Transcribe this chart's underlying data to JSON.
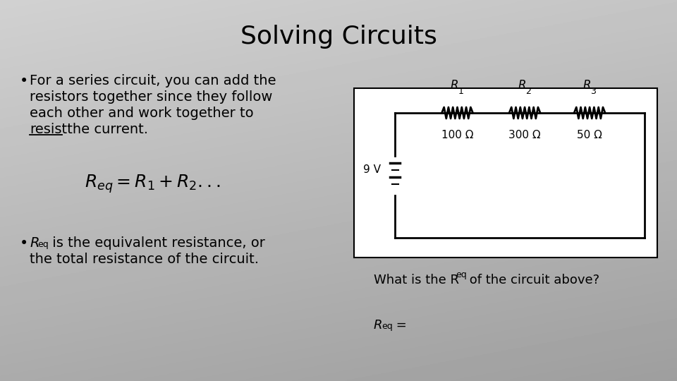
{
  "title": "Solving Circuits",
  "title_fontsize": 26,
  "bullet1_text": [
    "For a series circuit, you can add the",
    "resistors together since they follow",
    "each other and work together to",
    "resist the current."
  ],
  "formula": "$R_{eq} = R_1 + R_2 ...$",
  "bullet2_line1a": "R",
  "bullet2_line1b": "eq",
  "bullet2_line1c": " is the equivalent resistance, or",
  "bullet2_line2": "the total resistance of the circuit.",
  "question_a": "What is the R",
  "question_b": "eq",
  "question_c": " of the circuit above?",
  "answer_a": "R",
  "answer_b": "eq",
  "answer_c": " =",
  "resistor_values": [
    "100 Ω",
    "300 Ω",
    "50 Ω"
  ],
  "voltage": "9 V"
}
